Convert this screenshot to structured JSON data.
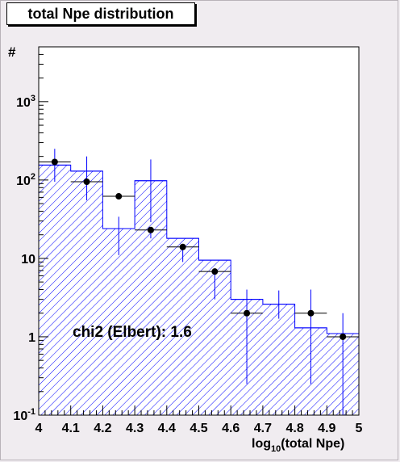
{
  "title": "total Npe distribution",
  "chart_data": {
    "type": "bar",
    "xlabel": "log10(total Npe)",
    "ylabel": "#",
    "xlim": [
      4.0,
      5.0
    ],
    "ylim": [
      0.1,
      5000
    ],
    "yscale": "log",
    "x_tick_labels": [
      "4",
      "4.1",
      "4.2",
      "4.3",
      "4.4",
      "4.5",
      "4.6",
      "4.7",
      "4.8",
      "4.9",
      "5"
    ],
    "y_tick_labels": [
      {
        "base": "10",
        "exp": "-1",
        "value": 0.1
      },
      {
        "base": "1",
        "exp": "",
        "value": 1
      },
      {
        "base": "10",
        "exp": "",
        "value": 10
      },
      {
        "base": "10",
        "exp": "2",
        "value": 100
      },
      {
        "base": "10",
        "exp": "3",
        "value": 1000
      }
    ],
    "series": [
      {
        "style": "hatched-histogram",
        "color": "#0000ff",
        "bin_edges": [
          4.0,
          4.1,
          4.2,
          4.3,
          4.4,
          4.5,
          4.6,
          4.7,
          4.8,
          4.9,
          5.0
        ],
        "values": [
          155,
          130,
          24,
          98,
          18,
          9.5,
          3.0,
          2.6,
          1.3,
          1.1
        ],
        "errors_low": [
          0,
          0,
          13,
          69,
          0,
          0,
          0,
          0.9,
          0,
          0
        ],
        "errors_high": [
          0,
          0,
          10,
          85,
          0,
          0,
          0,
          1.3,
          0,
          0
        ]
      },
      {
        "style": "points-with-errorbars",
        "color": "#000000",
        "x": [
          4.05,
          4.15,
          4.25,
          4.35,
          4.45,
          4.55,
          4.65,
          4.75,
          4.85,
          4.95
        ],
        "values": [
          170,
          95,
          62,
          23,
          14,
          6.8,
          2.0,
          null,
          2.0,
          1.0
        ],
        "errors_low": [
          75,
          40,
          0,
          5,
          5,
          3.8,
          1.75,
          null,
          1.75,
          0.9
        ],
        "errors_high": [
          80,
          105,
          0,
          0,
          0,
          0,
          2.0,
          null,
          2.0,
          1.0
        ]
      }
    ],
    "annotations": [
      "chi2 (Elbert): 1.6"
    ],
    "grid": false,
    "legend": "none"
  }
}
